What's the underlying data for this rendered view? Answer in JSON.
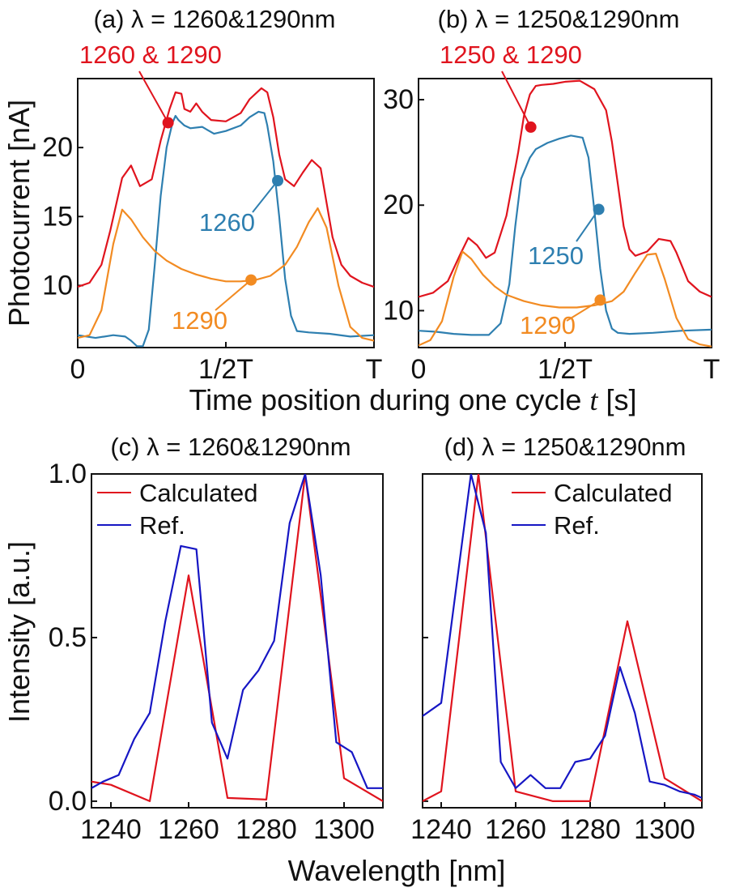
{
  "colors": {
    "combined": "#e0141e",
    "short": "#2e7fb0",
    "long": "#f28b22",
    "calculated": "#e0141e",
    "ref": "#1616c4"
  },
  "shared": {
    "time_xlabel": "Time position during one cycle",
    "time_xlabel_var": "t",
    "time_xlabel_unit": "[s]",
    "photocurrent_ylabel": "Photocurrent [nA]",
    "wavelength_xlabel": "Wavelength [nm]",
    "intensity_ylabel": "Intensity [a.u.]"
  },
  "chart_data": [
    {
      "id": "a",
      "type": "line",
      "title": "(a) λ = 1260&1290nm",
      "xlabel": "Time position during one cycle t [s]",
      "ylabel": "Photocurrent [nA]",
      "xlim": [
        0,
        1
      ],
      "ylim": [
        5.5,
        25
      ],
      "xticks": [
        0,
        0.5,
        1
      ],
      "xtick_labels": [
        "0",
        "1/2T",
        "T"
      ],
      "yticks": [
        10,
        15,
        20
      ],
      "ytick_labels": [
        "10",
        "15",
        "20"
      ],
      "series": [
        {
          "name": "1260 & 1290",
          "key": "combined",
          "x": [
            0,
            0.04,
            0.08,
            0.11,
            0.15,
            0.18,
            0.21,
            0.25,
            0.28,
            0.31,
            0.33,
            0.35,
            0.36,
            0.38,
            0.4,
            0.42,
            0.45,
            0.5,
            0.55,
            0.58,
            0.62,
            0.64,
            0.66,
            0.68,
            0.7,
            0.73,
            0.76,
            0.79,
            0.82,
            0.84,
            0.86,
            0.89,
            0.92,
            0.96,
            1.0
          ],
          "y": [
            9.9,
            10.2,
            11.5,
            14.0,
            17.8,
            18.7,
            17.2,
            17.7,
            20.5,
            22.8,
            24.0,
            23.9,
            22.8,
            22.6,
            23.2,
            22.6,
            22.0,
            21.9,
            22.5,
            23.5,
            24.3,
            24.0,
            22.2,
            19.5,
            17.7,
            17.2,
            18.2,
            19.1,
            18.5,
            16.0,
            13.5,
            11.5,
            10.7,
            10.2,
            9.9
          ]
        },
        {
          "name": "1260",
          "key": "short",
          "x": [
            0,
            0.06,
            0.12,
            0.16,
            0.18,
            0.2,
            0.22,
            0.24,
            0.26,
            0.28,
            0.3,
            0.32,
            0.33,
            0.34,
            0.36,
            0.38,
            0.42,
            0.46,
            0.5,
            0.55,
            0.58,
            0.61,
            0.63,
            0.64,
            0.66,
            0.68,
            0.7,
            0.72,
            0.74,
            0.78,
            0.85,
            0.92,
            1.0
          ],
          "y": [
            6.4,
            6.2,
            6.4,
            6.3,
            6.0,
            5.6,
            5.6,
            6.8,
            11.5,
            16.5,
            20.0,
            21.8,
            22.3,
            22.0,
            21.6,
            21.4,
            21.5,
            21.0,
            21.2,
            21.6,
            22.2,
            22.6,
            22.5,
            21.6,
            19.0,
            15.0,
            10.5,
            7.8,
            6.7,
            6.6,
            6.5,
            6.3,
            6.4
          ]
        },
        {
          "name": "1290",
          "key": "long",
          "x": [
            0,
            0.04,
            0.08,
            0.12,
            0.15,
            0.18,
            0.22,
            0.26,
            0.3,
            0.35,
            0.4,
            0.45,
            0.5,
            0.55,
            0.6,
            0.65,
            0.7,
            0.74,
            0.78,
            0.81,
            0.84,
            0.88,
            0.92,
            0.96,
            1.0
          ],
          "y": [
            6.2,
            6.4,
            8.2,
            13.0,
            15.5,
            14.8,
            13.5,
            12.5,
            11.8,
            11.2,
            10.8,
            10.5,
            10.3,
            10.3,
            10.4,
            10.7,
            11.5,
            12.8,
            14.6,
            15.6,
            14.2,
            10.0,
            7.0,
            6.2,
            6.0
          ]
        }
      ],
      "annotations": [
        {
          "series": "combined",
          "text": "1260 & 1290",
          "at_x": 0.305,
          "at_y": 21.8
        },
        {
          "series": "short",
          "text": "1260",
          "at_x": 0.675,
          "at_y": 17.6
        },
        {
          "series": "long",
          "text": "1290",
          "at_x": 0.585,
          "at_y": 10.4
        }
      ]
    },
    {
      "id": "b",
      "type": "line",
      "title": "(b) λ = 1250&1290nm",
      "xlabel": "Time position during one cycle t [s]",
      "ylabel": "Photocurrent [nA]",
      "xlim": [
        0,
        1
      ],
      "ylim": [
        6.5,
        32
      ],
      "xticks": [
        0,
        0.5,
        1
      ],
      "xtick_labels": [
        "0",
        "1/2T",
        "T"
      ],
      "yticks": [
        10,
        20,
        30
      ],
      "ytick_labels": [
        "10",
        "20",
        "30"
      ],
      "series": [
        {
          "name": "1250 & 1290",
          "key": "combined",
          "x": [
            0,
            0.05,
            0.1,
            0.14,
            0.17,
            0.2,
            0.23,
            0.26,
            0.3,
            0.34,
            0.36,
            0.38,
            0.4,
            0.42,
            0.46,
            0.5,
            0.55,
            0.6,
            0.64,
            0.66,
            0.68,
            0.7,
            0.72,
            0.74,
            0.78,
            0.82,
            0.86,
            0.88,
            0.92,
            0.96,
            1.0
          ],
          "y": [
            11.3,
            11.7,
            12.8,
            15.2,
            16.9,
            16.2,
            15.0,
            15.5,
            19.0,
            25.0,
            28.5,
            30.5,
            31.3,
            31.4,
            31.5,
            31.7,
            31.8,
            31.0,
            29.0,
            26.0,
            22.0,
            18.0,
            15.8,
            15.2,
            15.6,
            16.8,
            16.6,
            15.5,
            12.8,
            11.8,
            11.3
          ]
        },
        {
          "name": "1250",
          "key": "short",
          "x": [
            0,
            0.06,
            0.12,
            0.18,
            0.24,
            0.28,
            0.31,
            0.33,
            0.35,
            0.38,
            0.4,
            0.44,
            0.48,
            0.52,
            0.56,
            0.58,
            0.6,
            0.62,
            0.64,
            0.66,
            0.68,
            0.72,
            0.8,
            0.9,
            1.0
          ],
          "y": [
            8.1,
            8.0,
            7.8,
            7.7,
            7.7,
            8.8,
            12.5,
            18.0,
            22.5,
            24.5,
            25.3,
            25.9,
            26.3,
            26.6,
            26.4,
            24.5,
            19.5,
            14.0,
            10.0,
            8.3,
            7.9,
            7.8,
            7.9,
            8.1,
            8.2
          ]
        },
        {
          "name": "1290",
          "key": "long",
          "x": [
            0,
            0.04,
            0.08,
            0.12,
            0.15,
            0.18,
            0.22,
            0.26,
            0.3,
            0.36,
            0.42,
            0.48,
            0.54,
            0.6,
            0.66,
            0.7,
            0.74,
            0.78,
            0.81,
            0.84,
            0.88,
            0.92,
            0.96,
            1.0
          ],
          "y": [
            6.7,
            7.2,
            9.0,
            13.2,
            15.6,
            14.9,
            13.4,
            12.3,
            11.5,
            10.9,
            10.5,
            10.3,
            10.3,
            10.5,
            10.9,
            11.8,
            13.6,
            15.3,
            15.4,
            13.0,
            9.3,
            7.3,
            6.8,
            6.6
          ]
        }
      ],
      "annotations": [
        {
          "series": "combined",
          "text": "1250 & 1290",
          "at_x": 0.383,
          "at_y": 27.4
        },
        {
          "series": "short",
          "text": "1250",
          "at_x": 0.615,
          "at_y": 19.6
        },
        {
          "series": "long",
          "text": "1290",
          "at_x": 0.62,
          "at_y": 11.0
        }
      ]
    },
    {
      "id": "c",
      "type": "line",
      "title": "(c) λ = 1260&1290nm",
      "xlabel": "Wavelength [nm]",
      "ylabel": "Intensity [a.u.]",
      "xlim": [
        1235,
        1310
      ],
      "ylim": [
        -0.02,
        1.0
      ],
      "xticks": [
        1240,
        1260,
        1280,
        1300
      ],
      "xtick_labels": [
        "1240",
        "1260",
        "1280",
        "1300"
      ],
      "yticks": [
        0,
        0.5,
        1.0
      ],
      "ytick_labels": [
        "0.0",
        "0.5",
        "1.0"
      ],
      "legend_position": "top-left",
      "series": [
        {
          "name": "Calculated",
          "key": "calculated",
          "x": [
            1235,
            1240,
            1250,
            1260,
            1270,
            1280,
            1290,
            1300,
            1310
          ],
          "y": [
            0.06,
            0.05,
            0.0,
            0.69,
            0.01,
            0.005,
            1.0,
            0.07,
            0.0
          ]
        },
        {
          "name": "Ref.",
          "key": "ref",
          "x": [
            1235,
            1238,
            1242,
            1246,
            1250,
            1254,
            1258,
            1262,
            1266,
            1270,
            1274,
            1278,
            1282,
            1286,
            1290,
            1294,
            1298,
            1302,
            1306,
            1310
          ],
          "y": [
            0.04,
            0.06,
            0.08,
            0.19,
            0.27,
            0.55,
            0.78,
            0.77,
            0.24,
            0.13,
            0.34,
            0.4,
            0.49,
            0.85,
            1.0,
            0.69,
            0.18,
            0.15,
            0.04,
            0.04
          ]
        }
      ]
    },
    {
      "id": "d",
      "type": "line",
      "title": "(d) λ = 1250&1290nm",
      "xlabel": "Wavelength [nm]",
      "ylabel": "Intensity [a.u.]",
      "xlim": [
        1235,
        1310
      ],
      "ylim": [
        -0.02,
        1.0
      ],
      "xticks": [
        1240,
        1260,
        1280,
        1300
      ],
      "xtick_labels": [
        "1240",
        "1260",
        "1280",
        "1300"
      ],
      "yticks": [
        0,
        0.5,
        1.0
      ],
      "ytick_labels": [
        "",
        "",
        ""
      ],
      "legend_position": "top-right",
      "series": [
        {
          "name": "Calculated",
          "key": "calculated",
          "x": [
            1235,
            1240,
            1250,
            1260,
            1270,
            1280,
            1290,
            1300,
            1310
          ],
          "y": [
            0.0,
            0.03,
            1.0,
            0.03,
            0.0,
            0.0,
            0.55,
            0.07,
            0.0
          ]
        },
        {
          "name": "Ref.",
          "key": "ref",
          "x": [
            1235,
            1240,
            1244,
            1248,
            1252,
            1256,
            1260,
            1264,
            1268,
            1272,
            1276,
            1280,
            1284,
            1288,
            1292,
            1296,
            1300,
            1304,
            1308,
            1310
          ],
          "y": [
            0.26,
            0.3,
            0.65,
            1.0,
            0.82,
            0.12,
            0.04,
            0.08,
            0.04,
            0.04,
            0.12,
            0.13,
            0.2,
            0.41,
            0.27,
            0.06,
            0.05,
            0.03,
            0.02,
            0.01
          ]
        }
      ]
    }
  ]
}
